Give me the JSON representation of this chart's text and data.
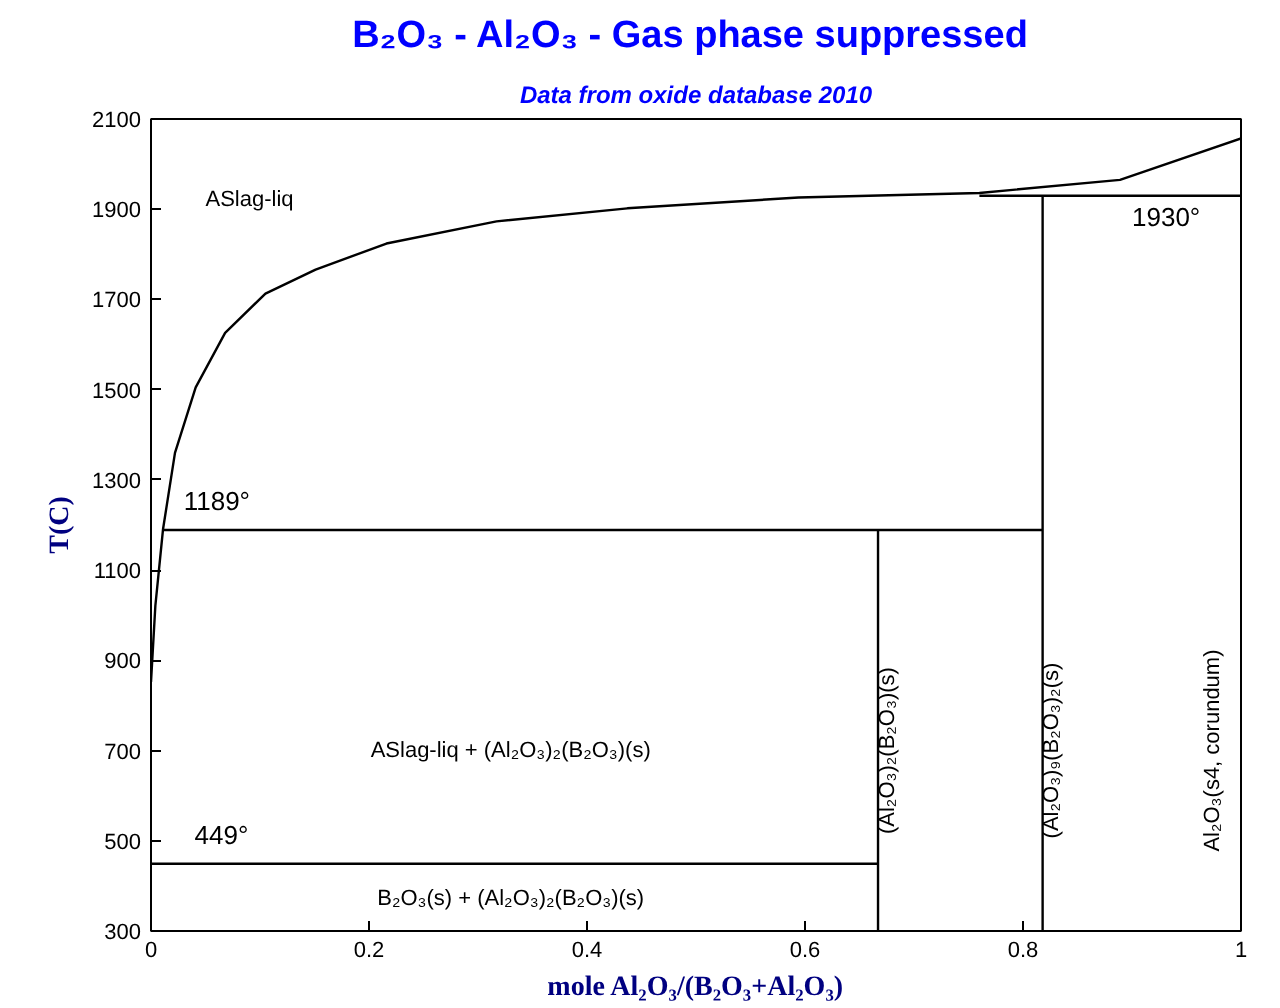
{
  "chart_data": {
    "type": "line",
    "title": "B₂O₃ - Al₂O₃ -  Gas phase suppressed",
    "subtitle": "Data from oxide database 2010",
    "xlabel": "mole Al₂O₃/(B₂O₃+Al₂O₃)",
    "ylabel": "T(C)",
    "xlim": [
      0,
      1
    ],
    "ylim": [
      300,
      2100
    ],
    "xticks": [
      0,
      0.2,
      0.4,
      0.6,
      0.8,
      1
    ],
    "yticks": [
      300,
      500,
      700,
      900,
      1100,
      1300,
      1500,
      1700,
      1900,
      2100
    ],
    "grid": false,
    "marker": "none",
    "line_style": "solid",
    "series": [
      {
        "color": "#000000",
        "x": [
          0,
          0.004,
          0.011,
          0.022,
          0.041,
          0.068,
          0.105,
          0.151,
          0.216,
          0.317,
          0.437,
          0.594,
          0.76,
          0.889,
          1.0
        ],
        "values": [
          852,
          1021,
          1190,
          1360,
          1505,
          1626,
          1713,
          1766,
          1824,
          1873,
          1902,
          1926,
          1936,
          1965,
          2057
        ]
      },
      {
        "color": "#000000",
        "x": [
          0.011,
          0.818
        ],
        "values": [
          1189,
          1189
        ]
      },
      {
        "color": "#000000",
        "x": [
          0,
          0.667
        ],
        "values": [
          449,
          449
        ]
      },
      {
        "color": "#000000",
        "x": [
          0.76,
          1.0
        ],
        "values": [
          1930,
          1930
        ]
      },
      {
        "color": "#000000",
        "x": [
          0.667,
          0.667
        ],
        "values": [
          300,
          1189
        ]
      },
      {
        "color": "#000000",
        "x": [
          0.818,
          0.818
        ],
        "values": [
          300,
          1930
        ]
      }
    ],
    "annotations": [
      "ASlag-liq",
      {
        "text": "1189°",
        "x": 0.03,
        "y": 1210
      },
      {
        "text": "1930°",
        "x": 0.9,
        "y": 1930
      },
      {
        "text": "449°",
        "x": 0.04,
        "y": 470
      },
      "ASlag-liq + (Al₂O₃)₂(B₂O₃)(s)",
      "B₂O₃(s) + (Al₂O₃)₂(B₂O₃)(s)",
      "(Al₂O₃)₂(B₂O₃)(s)",
      "(Al₂O₃)₉(B₂O₃)₂(s)",
      "Al₂O₃(s4, corundum)"
    ]
  }
}
